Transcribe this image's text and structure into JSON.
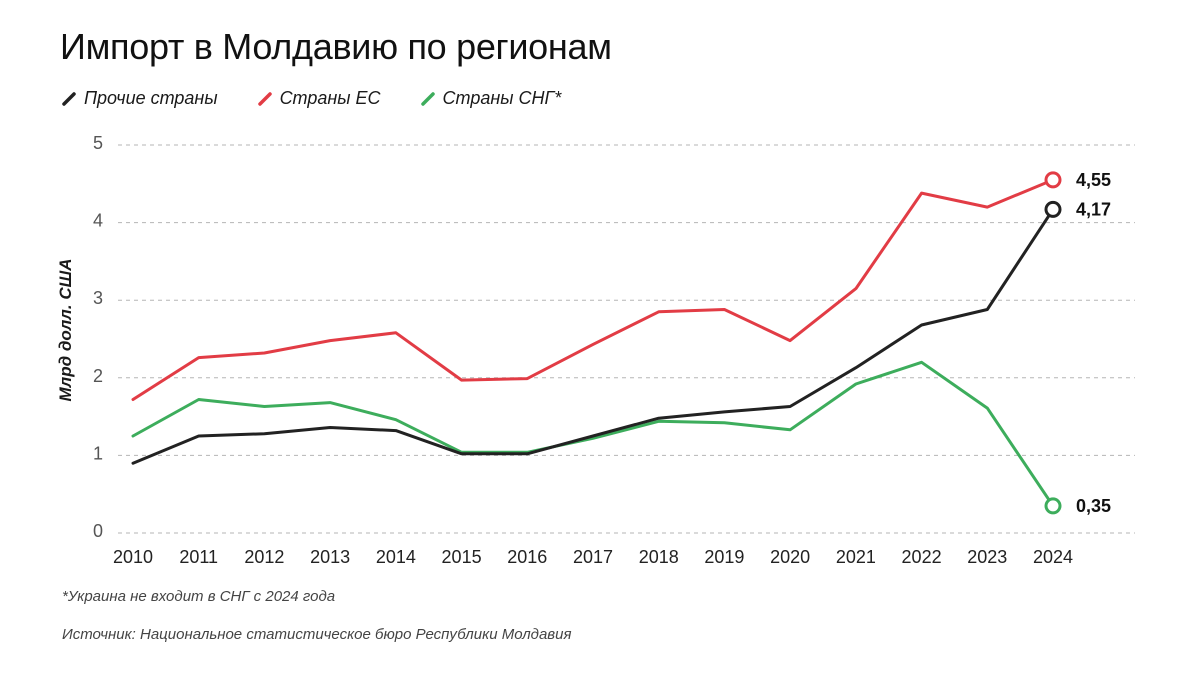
{
  "title": "Импорт в Молдавию по регионам",
  "footnote": "*Украина не входит в СНГ с 2024 года",
  "source": "Источник: Национальное статистическое бюро Республики Молдавия",
  "chart_data": {
    "type": "line",
    "title": "Импорт в Молдавию по регионам",
    "ylabel": "Млрд долл. США",
    "xlabel": "",
    "ylim": [
      0,
      5
    ],
    "yticks": [
      "0",
      "1",
      "2",
      "3",
      "4",
      "5"
    ],
    "grid": true,
    "legend_position": "top-left",
    "categories": [
      "2010",
      "2011",
      "2012",
      "2013",
      "2014",
      "2015",
      "2016",
      "2017",
      "2018",
      "2019",
      "2020",
      "2021",
      "2022",
      "2023",
      "2024"
    ],
    "series": [
      {
        "name": "Прочие страны",
        "color": "#222222",
        "values": [
          0.9,
          1.25,
          1.28,
          1.36,
          1.32,
          1.02,
          1.02,
          1.25,
          1.48,
          1.56,
          1.63,
          2.13,
          2.68,
          2.88,
          4.17
        ],
        "end_label": "4,17"
      },
      {
        "name": "Страны ЕС",
        "color": "#e23c45",
        "values": [
          1.72,
          2.26,
          2.32,
          2.48,
          2.58,
          1.97,
          1.99,
          2.43,
          2.85,
          2.88,
          2.48,
          3.15,
          4.38,
          4.2,
          4.55
        ],
        "end_label": "4,55"
      },
      {
        "name": "Страны СНГ*",
        "color": "#3dad5c",
        "values": [
          1.25,
          1.72,
          1.63,
          1.68,
          1.46,
          1.04,
          1.04,
          1.22,
          1.44,
          1.42,
          1.33,
          1.92,
          2.2,
          1.61,
          0.35
        ],
        "end_label": "0,35"
      }
    ]
  }
}
